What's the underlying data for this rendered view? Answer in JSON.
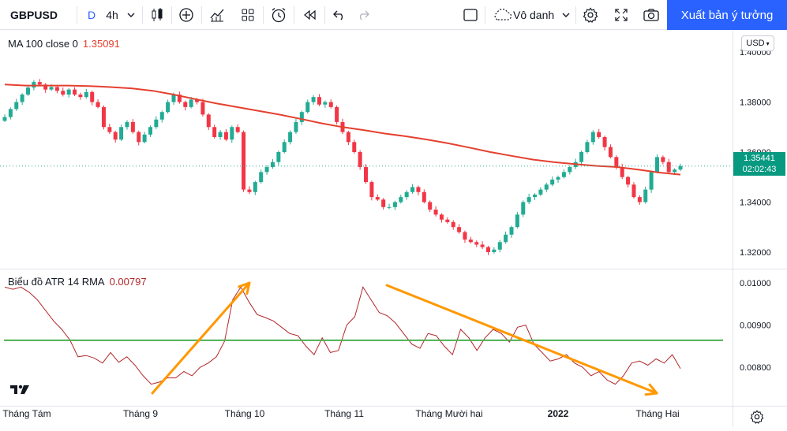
{
  "toolbar": {
    "symbol": "GBPUSD",
    "interval_d": "D",
    "interval": "4h",
    "layout_name": "Vô danh",
    "publish_label": "Xuất bản ý tưởng"
  },
  "price_pane": {
    "legend_name": "MA 100 close 0",
    "legend_value": "1.35091",
    "currency": "USD",
    "last_price": "1.35441",
    "countdown": "02:02:43"
  },
  "atr_pane": {
    "legend_name": "Biểu đồ ATR 14 RMA",
    "legend_value": "0.00797"
  },
  "colors": {
    "up": "#22ab94",
    "down": "#f23645",
    "ma": "#e5402f",
    "atr": "#b2282b",
    "level": "#4caf50",
    "arrow": "#ff9800",
    "accent": "#2962ff"
  },
  "chart_data": [
    {
      "type": "candlestick",
      "title": "GBPUSD 4h",
      "series": [
        {
          "name": "GBPUSD",
          "values": [
            1.374,
            1.3772,
            1.38,
            1.383,
            1.3858,
            1.388,
            1.387,
            1.385,
            1.386,
            1.3845,
            1.383,
            1.385,
            1.383,
            1.382,
            1.384,
            1.38,
            1.378,
            1.37,
            1.368,
            1.365,
            1.37,
            1.372,
            1.368,
            1.364,
            1.367,
            1.37,
            1.373,
            1.376,
            1.38,
            1.383,
            1.38,
            1.378,
            1.381,
            1.38,
            1.375,
            1.37,
            1.366,
            1.368,
            1.365,
            1.37,
            1.368,
            1.345,
            1.344,
            1.348,
            1.352,
            1.354,
            1.356,
            1.36,
            1.364,
            1.368,
            1.372,
            1.376,
            1.38,
            1.382,
            1.379,
            1.38,
            1.378,
            1.372,
            1.368,
            1.364,
            1.36,
            1.354,
            1.348,
            1.342,
            1.341,
            1.338,
            1.338,
            1.34,
            1.342,
            1.344,
            1.346,
            1.344,
            1.34,
            1.337,
            1.335,
            1.333,
            1.332,
            1.33,
            1.328,
            1.325,
            1.324,
            1.323,
            1.322,
            1.32,
            1.321,
            1.324,
            1.327,
            1.33,
            1.335,
            1.34,
            1.342,
            1.343,
            1.345,
            1.347,
            1.349,
            1.35,
            1.352,
            1.354,
            1.356,
            1.36,
            1.364,
            1.368,
            1.366,
            1.362,
            1.358,
            1.354,
            1.35,
            1.347,
            1.342,
            1.34,
            1.345,
            1.352,
            1.358,
            1.356,
            1.352,
            1.353,
            1.3544
          ]
        },
        {
          "name": "MA 100 close 0",
          "values": [
            1.387,
            1.3866,
            1.3866,
            1.3866,
            1.3864,
            1.386,
            1.3855,
            1.3845,
            1.383,
            1.3812,
            1.3795,
            1.378,
            1.3765,
            1.375,
            1.3733,
            1.3715,
            1.37,
            1.3688,
            1.3674,
            1.3663,
            1.365,
            1.3635,
            1.3618,
            1.36,
            1.3585,
            1.357,
            1.356,
            1.3552,
            1.3545,
            1.354,
            1.353,
            1.3518,
            1.351
          ]
        }
      ],
      "ylim": [
        1.314,
        1.406
      ],
      "y_ticks": [
        "1.40000",
        "1.38000",
        "1.36000",
        "1.34000",
        "1.32000"
      ],
      "x_ticks": [
        "Tháng Tám",
        "Tháng 9",
        "Tháng 10",
        "Tháng 11",
        "Tháng Mười hai",
        "2022",
        "Tháng Hai"
      ]
    },
    {
      "type": "line",
      "title": "Biểu đồ ATR 14 RMA",
      "series": [
        {
          "name": "ATR",
          "values": [
            0.0099,
            0.00985,
            0.0099,
            0.00978,
            0.0096,
            0.00935,
            0.0091,
            0.0089,
            0.00865,
            0.00825,
            0.00828,
            0.00822,
            0.0081,
            0.00835,
            0.00812,
            0.00825,
            0.00805,
            0.0078,
            0.0076,
            0.00765,
            0.00775,
            0.00775,
            0.0079,
            0.0078,
            0.008,
            0.0081,
            0.00825,
            0.00862,
            0.0096,
            0.0099,
            0.00955,
            0.00925,
            0.00918,
            0.0091,
            0.00895,
            0.0088,
            0.00875,
            0.0085,
            0.0083,
            0.0087,
            0.00835,
            0.0084,
            0.009,
            0.0092,
            0.0099,
            0.0096,
            0.0093,
            0.00922,
            0.00905,
            0.0088,
            0.00855,
            0.00845,
            0.0088,
            0.00875,
            0.0085,
            0.0083,
            0.0089,
            0.0087,
            0.0084,
            0.0087,
            0.0089,
            0.0088,
            0.0086,
            0.00895,
            0.009,
            0.00855,
            0.00835,
            0.00815,
            0.0082,
            0.0083,
            0.0081,
            0.008,
            0.0078,
            0.0079,
            0.0077,
            0.0076,
            0.0078,
            0.0081,
            0.00815,
            0.00805,
            0.0082,
            0.0081,
            0.0083,
            0.00797
          ]
        }
      ],
      "horizontal_line": 0.00864,
      "ylim": [
        0.00735,
        0.0103
      ],
      "y_ticks": [
        "0.01000",
        "0.00900",
        "0.00800"
      ]
    }
  ]
}
